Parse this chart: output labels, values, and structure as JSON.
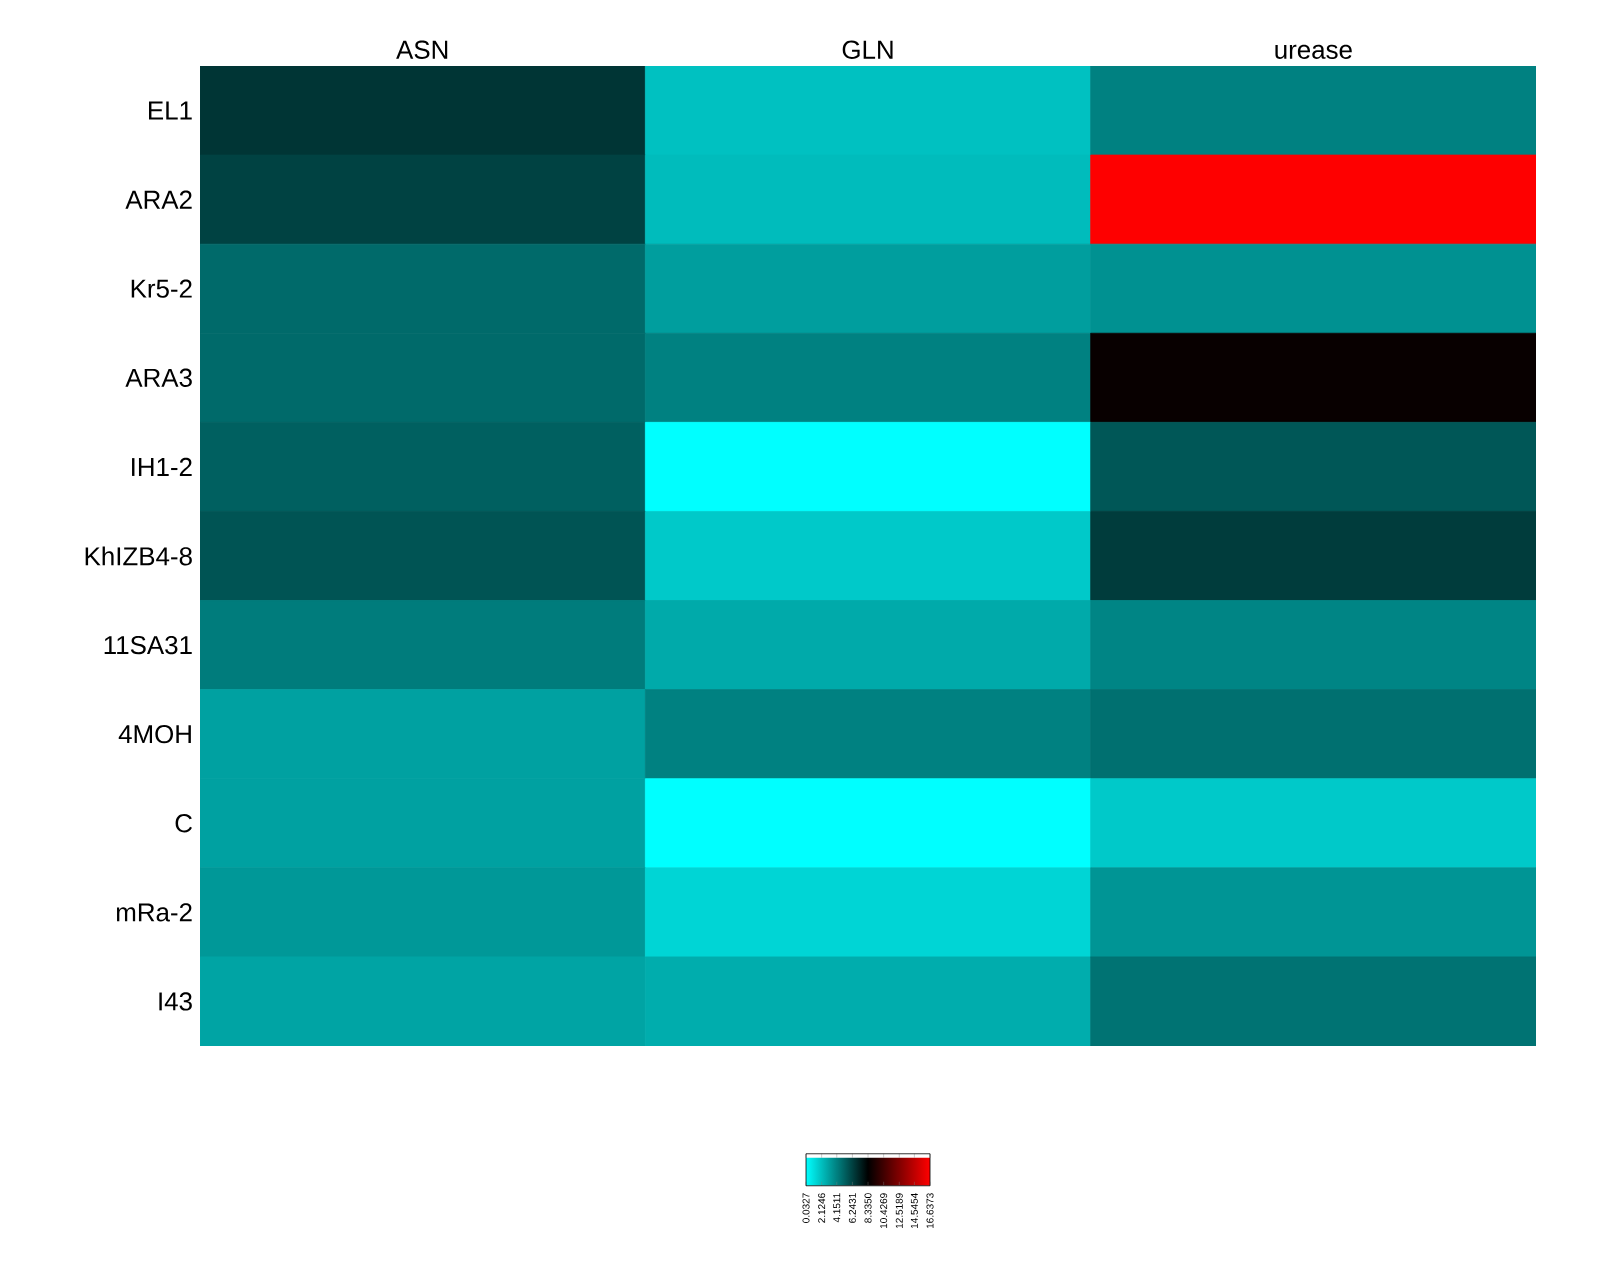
{
  "chart_data": {
    "type": "heatmap",
    "categories": [
      "ASN",
      "GLN",
      "urease"
    ],
    "y_categories": [
      "EL1",
      "ARA2",
      "Kr5-2",
      "ARA3",
      "IH1-2",
      "KhIZB4-8",
      "11SA31",
      "4MOH",
      "C",
      "mRa-2",
      "I43"
    ],
    "cells": [
      [
        6.6,
        2.05,
        4.15
      ],
      [
        6.2,
        2.2,
        16.6
      ],
      [
        4.9,
        3.2,
        3.6
      ],
      [
        4.9,
        4.15,
        8.6
      ],
      [
        5.2,
        0.03,
        5.5
      ],
      [
        5.6,
        1.8,
        6.4
      ],
      [
        4.3,
        2.8,
        4.0
      ],
      [
        3.1,
        4.15,
        4.7
      ],
      [
        3.1,
        0.03,
        1.8
      ],
      [
        3.4,
        1.4,
        3.5
      ],
      [
        3.0,
        2.7,
        4.6
      ]
    ],
    "clim": [
      0.0327,
      16.6373
    ],
    "cticks": [
      0.0327,
      2.1246,
      4.1511,
      6.2431,
      {
        "value": 8.335,
        "label": "8.3350"
      },
      10.4269,
      12.5189,
      14.5454,
      16.6373
    ]
  }
}
